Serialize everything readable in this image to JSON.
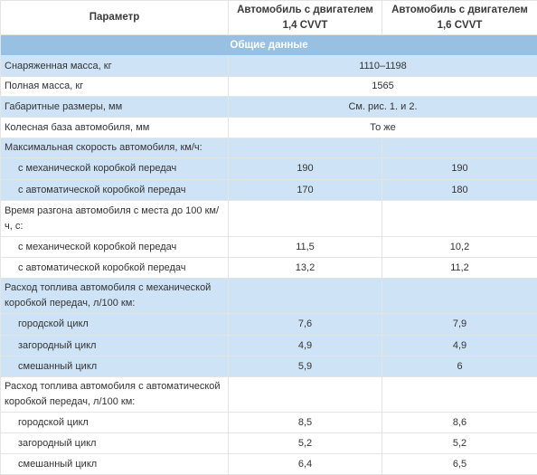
{
  "header": {
    "col_param": "Параметр",
    "col_14": "Автомобиль с двигателем 1,4 CVVT",
    "col_16": "Автомобиль с двигателем 1,6 CVVT"
  },
  "section": "Общие данные",
  "rows": {
    "curb_mass": {
      "label": "Снаряженная масса, кг",
      "value": "1110–1198"
    },
    "full_mass": {
      "label": "Полная масса, кг",
      "value": "1565"
    },
    "dimensions": {
      "label": "Габаритные размеры, мм",
      "value": "См. рис. 1. и 2."
    },
    "wheelbase": {
      "label": "Колесная база автомобиля, мм",
      "value": "То же"
    },
    "max_speed": {
      "label": "Максимальная скорость автомобиля, км/ч:"
    },
    "max_speed_manual": {
      "label": "с механической коробкой передач",
      "v14": "190",
      "v16": "190"
    },
    "max_speed_auto": {
      "label": "с автоматической коробкой передач",
      "v14": "170",
      "v16": "180"
    },
    "accel": {
      "label": "Время разгона автомобиля с места до 100 км/ч, с:"
    },
    "accel_manual": {
      "label": "с механической коробкой передач",
      "v14": "11,5",
      "v16": "10,2"
    },
    "accel_auto": {
      "label": "с автоматической коробкой передач",
      "v14": "13,2",
      "v16": "11,2"
    },
    "fuel_manual": {
      "label": "Расход топлива автомобиля с механической коробкой передач, л/100 км:"
    },
    "fm_city": {
      "label": "городской цикл",
      "v14": "7,6",
      "v16": "7,9"
    },
    "fm_highway": {
      "label": "загородный цикл",
      "v14": "4,9",
      "v16": "4,9"
    },
    "fm_mixed": {
      "label": "смешанный цикл",
      "v14": "5,9",
      "v16": "6"
    },
    "fuel_auto": {
      "label": "Расход топлива автомобиля с автоматической коробкой передач, л/100 км:"
    },
    "fa_city": {
      "label": "городской цикл",
      "v14": "8,5",
      "v16": "8,6"
    },
    "fa_highway": {
      "label": "загородный цикл",
      "v14": "5,2",
      "v16": "5,2"
    },
    "fa_mixed": {
      "label": "смешанный цикл",
      "v14": "6,4",
      "v16": "6,5"
    }
  }
}
